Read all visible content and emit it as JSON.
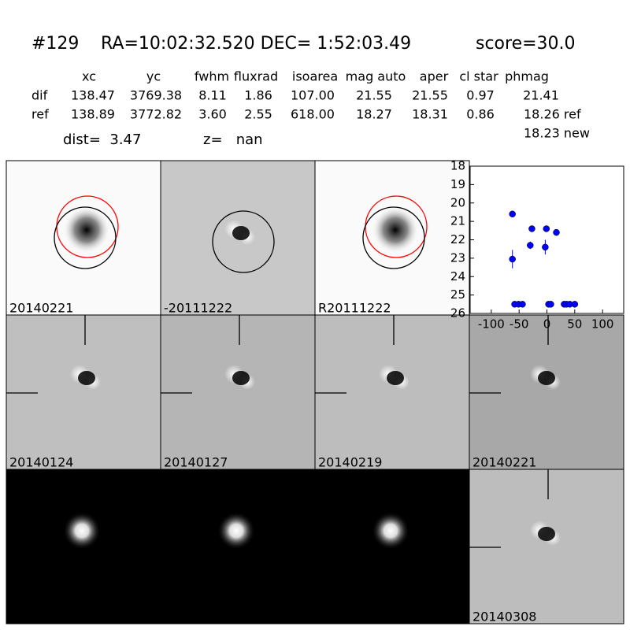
{
  "header": {
    "id": "#129",
    "coords": "RA=10:02:32.520 DEC= 1:52:03.49",
    "score": "score=30.0"
  },
  "table": {
    "columns": [
      "xc",
      "yc",
      "fwhm",
      "fluxrad",
      "isoarea",
      "mag auto",
      "aper",
      "cl star",
      "phmag"
    ],
    "rows": [
      {
        "label": "dif",
        "values": [
          "138.47",
          "3769.38",
          "8.11",
          "1.86",
          "107.00",
          "21.55",
          "21.55",
          "0.97",
          "21.41"
        ]
      },
      {
        "label": "ref",
        "values": [
          "138.89",
          "3772.82",
          "3.60",
          "2.55",
          "618.00",
          "18.27",
          "18.31",
          "0.86",
          "18.26 ref"
        ]
      }
    ],
    "phmag_new": "18.23 new"
  },
  "dist": "dist=  3.47",
  "z": "z=   nan",
  "panels": [
    {
      "label": "20140221"
    },
    {
      "label": "-20111222"
    },
    {
      "label": "R20111222"
    },
    {
      "label": "20140124"
    },
    {
      "label": "20140127"
    },
    {
      "label": "20140219"
    },
    {
      "label": "20140221",
      "label_color": "#ff0000"
    },
    {
      "label": "20140308"
    }
  ],
  "chart_data": {
    "type": "scatter",
    "x": [
      -62,
      -62,
      -58,
      -51,
      -44,
      -30,
      -27,
      -1,
      -3,
      3,
      7,
      17,
      31,
      35,
      41,
      50
    ],
    "series": [
      {
        "color": "#0000ff",
        "values": [
          20.6,
          23.05,
          25.5,
          25.5,
          25.5,
          22.3,
          21.4,
          21.4,
          22.4,
          25.5,
          25.5,
          21.6,
          25.5,
          25.5,
          25.5,
          25.5
        ],
        "errors": [
          0.1,
          0.5,
          0,
          0,
          0,
          0.2,
          0.1,
          0.05,
          0.4,
          0,
          0,
          0.1,
          0,
          0,
          0,
          0
        ]
      }
    ],
    "xlim": [
      -138,
      138
    ],
    "xticks": [
      -100,
      -50,
      0,
      50,
      100
    ],
    "ylim": [
      26,
      18
    ],
    "yticks": [
      18,
      19,
      20,
      21,
      22,
      23,
      24,
      25,
      26
    ]
  }
}
